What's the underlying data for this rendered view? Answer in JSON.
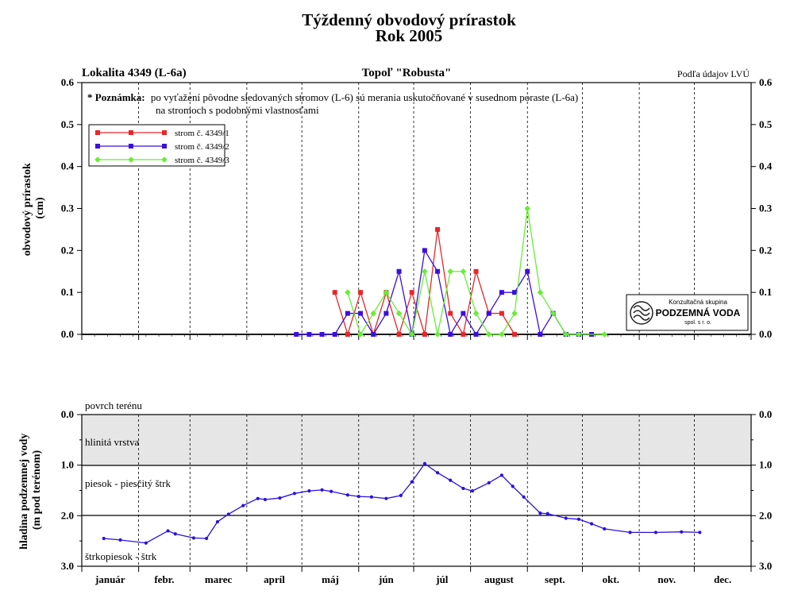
{
  "header": {
    "title": "Týždenný obvodový prírastok",
    "subtitle": "Rok 2005",
    "location": "Lokalita 4349 (L-6a)",
    "species": "Topoľ \"Robusta\"",
    "source": "Podľa údajov LVÚ"
  },
  "note": {
    "label": "* Poznámka:",
    "line1": "po vyťažení pôvodne sledovaných stromov (L-6) sú merania uskutočňované v susednom poraste (L-6a)",
    "line2": "na stromoch s podobnými vlastnosťami"
  },
  "logo": {
    "line1": "Konzultačná skupina",
    "line2": "PODZEMNÁ VODA",
    "line3": "spol. s r. o."
  },
  "months": [
    "január",
    "febr.",
    "marec",
    "apríl",
    "máj",
    "jún",
    "júl",
    "august",
    "sept.",
    "okt.",
    "nov.",
    "dec."
  ],
  "layers": {
    "surface": "povrch terénu",
    "clay": "hlinitá vrstva",
    "sand": "piesok - piesčitý štrk",
    "gravel": "štrkopiesok - štrk"
  },
  "colors": {
    "tree1": "#e8262a",
    "tree2": "#3b0fe0",
    "tree3": "#66ee33",
    "water": "#2a10e0",
    "band": "#e6e6e6"
  },
  "chart_data": [
    {
      "type": "line",
      "ylabel": "obvodový prírastok (cm)",
      "ylim": [
        0,
        0.6
      ],
      "yticks": [
        "0.0",
        "0.1",
        "0.2",
        "0.3",
        "0.4",
        "0.5",
        "0.6"
      ],
      "x_unit": "day of year 2005",
      "legend_position": "top-left",
      "series": [
        {
          "name": "strom č. 4349/1",
          "color_key": "tree1",
          "marker": "square",
          "points": [
            [
              138,
              0.1
            ],
            [
              145,
              0
            ],
            [
              152,
              0.1
            ],
            [
              159,
              0
            ],
            [
              166,
              0.1
            ],
            [
              173,
              0
            ],
            [
              180,
              0.1
            ],
            [
              187,
              0
            ],
            [
              194,
              0.25
            ],
            [
              201,
              0.05
            ],
            [
              208,
              0
            ],
            [
              215,
              0.15
            ],
            [
              222,
              0.05
            ],
            [
              229,
              0.05
            ],
            [
              236,
              0
            ]
          ]
        },
        {
          "name": "strom č. 4349/2",
          "color_key": "tree2",
          "marker": "square",
          "points": [
            [
              117,
              0
            ],
            [
              124,
              0
            ],
            [
              131,
              0
            ],
            [
              138,
              0
            ],
            [
              145,
              0.05
            ],
            [
              152,
              0.05
            ],
            [
              159,
              0
            ],
            [
              166,
              0.05
            ],
            [
              173,
              0.15
            ],
            [
              180,
              0
            ],
            [
              187,
              0.2
            ],
            [
              194,
              0.15
            ],
            [
              201,
              0
            ],
            [
              208,
              0.05
            ],
            [
              215,
              0
            ],
            [
              222,
              0.05
            ],
            [
              229,
              0.1
            ],
            [
              236,
              0.1
            ],
            [
              243,
              0.15
            ],
            [
              250,
              0
            ],
            [
              257,
              0.05
            ],
            [
              264,
              0
            ],
            [
              271,
              0
            ],
            [
              278,
              0
            ]
          ]
        },
        {
          "name": "strom č. 4349/3",
          "color_key": "tree3",
          "marker": "diamond",
          "points": [
            [
              145,
              0.1
            ],
            [
              152,
              0
            ],
            [
              159,
              0.05
            ],
            [
              166,
              0.1
            ],
            [
              173,
              0.05
            ],
            [
              180,
              0
            ],
            [
              187,
              0.15
            ],
            [
              194,
              0
            ],
            [
              201,
              0.15
            ],
            [
              208,
              0.15
            ],
            [
              215,
              0.05
            ],
            [
              222,
              0
            ],
            [
              229,
              0
            ],
            [
              236,
              0.05
            ],
            [
              243,
              0.3
            ],
            [
              250,
              0.1
            ],
            [
              257,
              0.05
            ],
            [
              264,
              0
            ],
            [
              271,
              0
            ],
            [
              285,
              0
            ]
          ]
        }
      ]
    },
    {
      "type": "line",
      "ylabel": "hladina podzemnej vody (m pod terénom)",
      "ylim": [
        0,
        3.0
      ],
      "y_inverted": true,
      "yticks": [
        "0.0",
        "1.0",
        "2.0",
        "3.0"
      ],
      "layer_boundaries": [
        1.0,
        2.0
      ],
      "x_unit": "day of year 2005",
      "series": [
        {
          "name": "hladina",
          "color_key": "water",
          "marker": "dot",
          "points": [
            [
              12,
              2.45
            ],
            [
              21,
              2.48
            ],
            [
              35,
              2.54
            ],
            [
              47,
              2.3
            ],
            [
              51,
              2.36
            ],
            [
              61,
              2.44
            ],
            [
              68,
              2.45
            ],
            [
              74,
              2.12
            ],
            [
              80,
              1.97
            ],
            [
              88,
              1.8
            ],
            [
              96,
              1.66
            ],
            [
              100,
              1.68
            ],
            [
              108,
              1.65
            ],
            [
              116,
              1.56
            ],
            [
              124,
              1.51
            ],
            [
              131,
              1.49
            ],
            [
              136,
              1.52
            ],
            [
              145,
              1.59
            ],
            [
              151,
              1.62
            ],
            [
              158,
              1.63
            ],
            [
              166,
              1.66
            ],
            [
              174,
              1.6
            ],
            [
              180,
              1.33
            ],
            [
              187,
              0.97
            ],
            [
              194,
              1.15
            ],
            [
              201,
              1.3
            ],
            [
              208,
              1.46
            ],
            [
              213,
              1.51
            ],
            [
              222,
              1.35
            ],
            [
              229,
              1.2
            ],
            [
              235,
              1.42
            ],
            [
              241,
              1.63
            ],
            [
              250,
              1.95
            ],
            [
              254,
              1.96
            ],
            [
              264,
              2.05
            ],
            [
              271,
              2.07
            ],
            [
              278,
              2.16
            ],
            [
              285,
              2.26
            ],
            [
              299,
              2.33
            ],
            [
              313,
              2.33
            ],
            [
              327,
              2.32
            ],
            [
              337,
              2.33
            ]
          ]
        }
      ]
    }
  ]
}
